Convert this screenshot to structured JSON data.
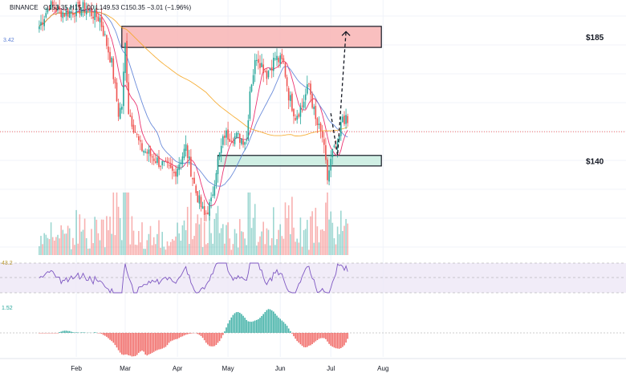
{
  "header": {
    "exchange": "BINANCE",
    "ohlc_text": "O153.35  H15_.00  L149.53  C150.35  −3.01 (−1.96%)",
    "side_value": "3.42"
  },
  "indicators": {
    "rsi_value": "43.2",
    "macd_value": "1.52"
  },
  "colors": {
    "bull": "#26a69a",
    "bear": "#ef5350",
    "sma_fast": "#e91e63",
    "sma_mid": "#5b7fd6",
    "sma_slow": "#f5a623",
    "resistance_fill": "#f8b4b4",
    "support_fill": "#c8ecdf",
    "rsi_line": "#7e57c2",
    "rsi_band": "#ede7f6"
  },
  "chart_data": {
    "type": "candlestick",
    "x_axis_labels": [
      "Feb",
      "Mar",
      "Apr",
      "May",
      "Jun",
      "Jul",
      "Aug"
    ],
    "y_range": [
      105,
      200
    ],
    "zones": [
      {
        "label": "$185",
        "low": 182,
        "high": 190,
        "from": "Feb 28",
        "to": "Jul 31",
        "kind": "resistance"
      },
      {
        "label": "$140",
        "low": 137,
        "high": 141,
        "from": "Apr 25",
        "to": "Jul 31",
        "kind": "support"
      }
    ],
    "projection": [
      {
        "date": "Jul 1",
        "value": 157
      },
      {
        "date": "Jul 5",
        "value": 141
      },
      {
        "date": "Jul 10",
        "value": 188
      }
    ],
    "current_price_line": 150,
    "anchors": [
      {
        "date": "Jan 10",
        "value": 190
      },
      {
        "date": "Jan 16",
        "value": 198
      },
      {
        "date": "Jan 25",
        "value": 195
      },
      {
        "date": "Feb 5",
        "value": 197
      },
      {
        "date": "Feb 15",
        "value": 193
      },
      {
        "date": "Feb 22",
        "value": 176
      },
      {
        "date": "Feb 26",
        "value": 157
      },
      {
        "date": "Feb 28",
        "value": 160
      },
      {
        "date": "Mar 1",
        "value": 183
      },
      {
        "date": "Mar 3",
        "value": 158
      },
      {
        "date": "Mar 10",
        "value": 144
      },
      {
        "date": "Mar 20",
        "value": 139
      },
      {
        "date": "Mar 30",
        "value": 134
      },
      {
        "date": "Apr 6",
        "value": 144
      },
      {
        "date": "Apr 12",
        "value": 127
      },
      {
        "date": "Apr 17",
        "value": 118
      },
      {
        "date": "Apr 21",
        "value": 123
      },
      {
        "date": "Apr 24",
        "value": 136
      },
      {
        "date": "Apr 29",
        "value": 149
      },
      {
        "date": "May 5",
        "value": 148
      },
      {
        "date": "May 12",
        "value": 147
      },
      {
        "date": "May 14",
        "value": 166
      },
      {
        "date": "May 18",
        "value": 179
      },
      {
        "date": "May 24",
        "value": 172
      },
      {
        "date": "May 29",
        "value": 178
      },
      {
        "date": "Jun 3",
        "value": 176
      },
      {
        "date": "Jun 6",
        "value": 164
      },
      {
        "date": "Jun 10",
        "value": 156
      },
      {
        "date": "Jun 14",
        "value": 160
      },
      {
        "date": "Jun 18",
        "value": 168
      },
      {
        "date": "Jun 22",
        "value": 154
      },
      {
        "date": "Jun 26",
        "value": 148
      },
      {
        "date": "Jun 29",
        "value": 132
      },
      {
        "date": "Jul 2",
        "value": 142
      },
      {
        "date": "Jul 5",
        "value": 144
      },
      {
        "date": "Jul 8",
        "value": 156
      },
      {
        "date": "Jul 11",
        "value": 153
      }
    ]
  }
}
